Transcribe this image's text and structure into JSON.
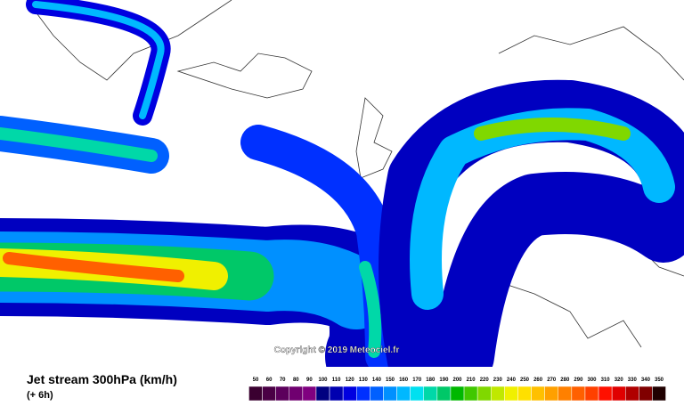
{
  "title": "Jet stream 300hPa (km/h)",
  "subtitle": "(+ 6h)",
  "copyright": "Copyright © 2019 Meteociel.fr",
  "scale": {
    "labels": [
      50,
      60,
      70,
      80,
      90,
      100,
      110,
      120,
      130,
      140,
      150,
      160,
      170,
      180,
      190,
      200,
      210,
      220,
      230,
      240,
      250,
      260,
      270,
      280,
      290,
      300,
      310,
      320,
      330,
      340,
      350
    ],
    "colors": [
      "#3a0030",
      "#4a0045",
      "#5c005c",
      "#700070",
      "#800080",
      "#000080",
      "#0000b0",
      "#0000e0",
      "#0030ff",
      "#0060ff",
      "#0090ff",
      "#00b8ff",
      "#00e0f0",
      "#00d8a8",
      "#00c868",
      "#00b800",
      "#40c800",
      "#80d800",
      "#c0e800",
      "#f0f000",
      "#ffe000",
      "#ffc000",
      "#ffa000",
      "#ff8000",
      "#ff6000",
      "#ff4000",
      "#ff1000",
      "#e00000",
      "#b00000",
      "#800000",
      "#200000"
    ]
  }
}
